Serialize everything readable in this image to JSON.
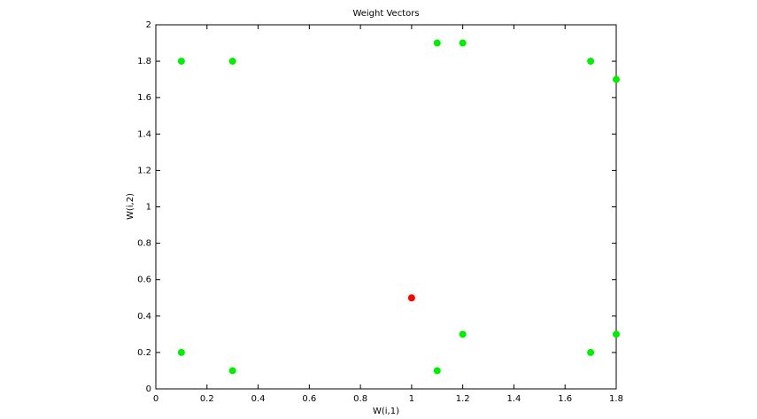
{
  "chart_data": {
    "type": "scatter",
    "title": "Weight Vectors",
    "x_label": "W(i,1)",
    "y_label": "W(i,2)",
    "series": [
      {
        "color": "#00ee00",
        "x": [
          0.1,
          0.3,
          1.1,
          1.2,
          1.7,
          1.8,
          0.1,
          0.3,
          1.1,
          1.2,
          1.7,
          1.8
        ],
        "values": [
          1.8,
          1.8,
          1.9,
          1.9,
          1.8,
          1.7,
          0.2,
          0.1,
          0.1,
          0.3,
          0.2,
          0.3
        ]
      },
      {
        "color": "#ff0000",
        "x": [
          1
        ],
        "values": [
          0.5
        ]
      }
    ],
    "xlim": [
      0,
      1.8
    ],
    "xticks": [
      0,
      0.2,
      0.4,
      0.6,
      0.8,
      1,
      1.2,
      1.4,
      1.6,
      1.8
    ],
    "ylim": [
      0,
      2
    ],
    "yticks": [
      0,
      0.2,
      0.4,
      0.6,
      0.8,
      1,
      1.2,
      1.4,
      1.6,
      1.8,
      2
    ],
    "grid": false
  }
}
